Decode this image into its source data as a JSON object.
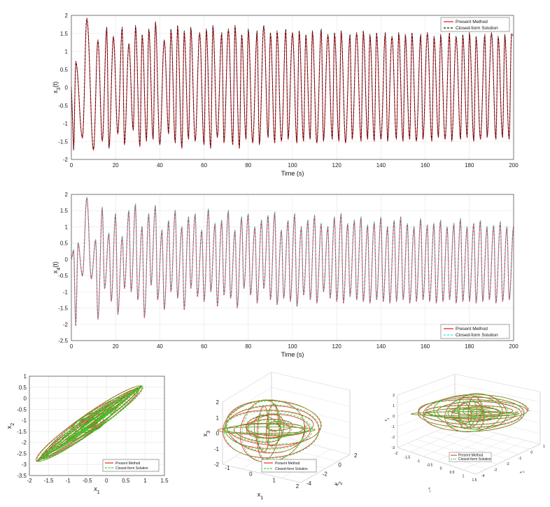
{
  "chart_data": [
    {
      "type": "line",
      "ylabel": "x",
      "ylabel_sub": "3",
      "ylabel_tail": "(t)",
      "xlabel": "Time (s)",
      "xlim": [
        0,
        200
      ],
      "ylim": [
        -2,
        2
      ],
      "xticks": [
        0,
        20,
        40,
        60,
        80,
        100,
        120,
        140,
        160,
        180,
        200
      ],
      "yticks": [
        -2,
        -1.5,
        -1,
        -0.5,
        0,
        0.5,
        1,
        1.5,
        2
      ],
      "grid": true,
      "legend_position": "top-right",
      "series": [
        {
          "name": "Present Method",
          "color": "#e8262e",
          "style": "solid"
        },
        {
          "name": "Closed-form Solution",
          "color": "#111111",
          "style": "dashed"
        }
      ],
      "peaks": {
        "x": [
          2,
          7,
          12,
          16,
          19,
          23,
          26,
          29,
          32,
          35,
          38,
          42,
          45,
          48,
          51,
          54,
          58,
          61,
          64,
          68,
          71,
          74,
          77,
          80,
          84,
          87,
          90,
          93,
          97,
          100,
          103,
          106,
          109,
          113,
          116,
          119,
          122,
          126,
          129,
          132,
          135,
          138,
          142,
          145,
          148,
          151,
          154,
          158,
          161,
          164,
          167,
          171,
          174,
          177,
          180,
          183,
          187,
          190,
          193,
          196,
          199
        ],
        "y": [
          0.7,
          1.9,
          1.3,
          1.65,
          1.4,
          1.65,
          1.2,
          1.7,
          1.45,
          1.6,
          1.8,
          1.3,
          1.6,
          1.7,
          1.55,
          1.65,
          1.5,
          1.6,
          1.7,
          1.5,
          1.6,
          1.7,
          1.45,
          1.6,
          1.55,
          1.7,
          1.5,
          1.55,
          1.6,
          1.5,
          1.55,
          1.45,
          1.55,
          1.6,
          1.45,
          1.5,
          1.55,
          1.45,
          1.5,
          1.55,
          1.45,
          1.5,
          1.5,
          1.4,
          1.5,
          1.45,
          1.5,
          1.45,
          1.5,
          1.4,
          1.45,
          1.5,
          1.4,
          1.45,
          1.5,
          1.4,
          1.45,
          1.5,
          1.4,
          1.45,
          1.45
        ]
      },
      "troughs": {
        "x": [
          1,
          5,
          10,
          14,
          17,
          21,
          24,
          28,
          31,
          34,
          37,
          40,
          44,
          47,
          50,
          53,
          56,
          60,
          63,
          66,
          69,
          73,
          76,
          79,
          82,
          85,
          89,
          92,
          95,
          98,
          102,
          105,
          108,
          111,
          114,
          118,
          121,
          124,
          127,
          131,
          134,
          137,
          140,
          143,
          147,
          150,
          153,
          156,
          159,
          163,
          166,
          169,
          172,
          176,
          179,
          182,
          185,
          188,
          192,
          195,
          198
        ],
        "y": [
          -1.75,
          -1.4,
          -1.75,
          -1.5,
          -1.7,
          -1.3,
          -1.6,
          -1.2,
          -1.65,
          -1.5,
          -1.45,
          -1.6,
          -1.3,
          -1.55,
          -1.7,
          -1.45,
          -1.5,
          -1.6,
          -1.7,
          -1.4,
          -1.55,
          -1.6,
          -1.7,
          -1.45,
          -1.55,
          -1.6,
          -1.4,
          -1.55,
          -1.5,
          -1.45,
          -1.55,
          -1.5,
          -1.45,
          -1.55,
          -1.5,
          -1.45,
          -1.5,
          -1.55,
          -1.45,
          -1.5,
          -1.45,
          -1.5,
          -1.45,
          -1.5,
          -1.45,
          -1.5,
          -1.45,
          -1.5,
          -1.45,
          -1.5,
          -1.4,
          -1.45,
          -1.5,
          -1.45,
          -1.4,
          -1.5,
          -1.45,
          -1.4,
          -1.45,
          -1.4,
          -1.45
        ]
      }
    },
    {
      "type": "line",
      "ylabel": "x",
      "ylabel_sub": "4",
      "ylabel_tail": "(t)",
      "xlabel": "Time (s)",
      "xlim": [
        0,
        200
      ],
      "ylim": [
        -2.5,
        2
      ],
      "xticks": [
        0,
        20,
        40,
        60,
        80,
        100,
        120,
        140,
        160,
        180,
        200
      ],
      "yticks": [
        -2.5,
        -2,
        -1.5,
        -1,
        -0.5,
        0,
        0.5,
        1,
        1.5,
        2
      ],
      "grid": true,
      "legend_position": "bottom-right",
      "series": [
        {
          "name": "Present Method",
          "color": "#e8262e",
          "style": "solid"
        },
        {
          "name": "Closed-form Solution",
          "color": "#39d3ea",
          "style": "dashed"
        }
      ],
      "peaks": {
        "x": [
          1,
          3,
          7,
          11,
          14,
          17,
          20,
          23,
          26,
          29,
          32,
          35,
          38,
          41,
          44,
          47,
          50,
          53,
          56,
          59,
          62,
          65,
          68,
          71,
          74,
          77,
          80,
          83,
          86,
          89,
          92,
          95,
          98,
          101,
          104,
          107,
          110,
          113,
          116,
          119,
          122,
          125,
          128,
          131,
          134,
          137,
          140,
          143,
          146,
          149,
          152,
          155,
          158,
          161,
          164,
          167,
          170,
          173,
          176,
          179,
          182,
          185,
          188,
          191,
          194,
          197,
          200
        ],
        "y": [
          0.3,
          0.5,
          1.9,
          0.6,
          1.6,
          0.8,
          1.4,
          0.7,
          1.5,
          1.7,
          1.0,
          1.4,
          1.65,
          0.9,
          1.2,
          1.5,
          1.0,
          1.3,
          1.4,
          0.9,
          1.55,
          1.1,
          1.2,
          1.5,
          0.9,
          1.3,
          1.4,
          1.0,
          1.2,
          1.35,
          1.45,
          0.9,
          1.2,
          1.4,
          1.0,
          1.2,
          1.35,
          1.1,
          1.0,
          1.3,
          1.4,
          1.1,
          1.2,
          1.3,
          1.05,
          1.15,
          1.3,
          1.0,
          1.2,
          1.3,
          1.1,
          1.0,
          1.25,
          1.05,
          1.1,
          1.2,
          1.0,
          1.1,
          1.25,
          1.0,
          1.1,
          1.2,
          1.0,
          1.05,
          1.15,
          1.0,
          1.0
        ]
      },
      "troughs": {
        "x": [
          2,
          5,
          9,
          12,
          15,
          18,
          21,
          24,
          27,
          30,
          33,
          36,
          39,
          42,
          45,
          48,
          51,
          54,
          57,
          60,
          63,
          66,
          69,
          72,
          75,
          78,
          81,
          84,
          87,
          90,
          93,
          96,
          99,
          102,
          105,
          108,
          111,
          114,
          117,
          120,
          123,
          126,
          129,
          132,
          135,
          138,
          141,
          144,
          147,
          150,
          153,
          156,
          159,
          162,
          165,
          168,
          171,
          174,
          177,
          180,
          183,
          186,
          189,
          192,
          195,
          198
        ],
        "y": [
          -2.05,
          -0.5,
          -0.6,
          -1.85,
          -0.9,
          -1.3,
          -1.7,
          -0.9,
          -1.0,
          -1.25,
          -1.8,
          -0.8,
          -1.25,
          -1.55,
          -1.0,
          -1.2,
          -1.55,
          -0.9,
          -1.15,
          -1.3,
          -1.0,
          -1.45,
          -1.1,
          -1.2,
          -1.5,
          -0.9,
          -1.1,
          -1.35,
          -0.9,
          -1.25,
          -1.4,
          -1.2,
          -1.3,
          -1.45,
          -1.1,
          -1.25,
          -1.35,
          -1.0,
          -1.2,
          -1.3,
          -1.35,
          -1.15,
          -1.25,
          -1.3,
          -1.35,
          -1.25,
          -1.3,
          -1.35,
          -1.3,
          -1.25,
          -1.35,
          -1.3,
          -1.25,
          -1.3,
          -1.35,
          -1.3,
          -1.25,
          -1.35,
          -1.3,
          -1.3,
          -1.35,
          -1.3,
          -1.25,
          -1.35,
          -1.3,
          -1.25
        ]
      }
    },
    {
      "type": "line",
      "subtype": "phase-portrait",
      "xlabel": "x",
      "xlabel_sub": "1",
      "ylabel": "x",
      "ylabel_sub": "2",
      "xlim": [
        -2,
        1.5
      ],
      "ylim": [
        -3.5,
        1
      ],
      "xticks": [
        -2,
        -1.5,
        -1,
        -0.5,
        0,
        0.5,
        1,
        1.5
      ],
      "yticks": [
        -3.5,
        -3,
        -2.5,
        -2,
        -1.5,
        -1,
        -0.5,
        0,
        0.5,
        1
      ],
      "grid": true,
      "legend_position": "bottom-right",
      "series": [
        {
          "name": "Present Method",
          "color": "#e8262e",
          "style": "solid"
        },
        {
          "name": "Closed-form Solution",
          "color": "#22dd22",
          "style": "dashed"
        }
      ],
      "orbit": {
        "center": [
          -0.45,
          -1.15
        ],
        "axis_dir": [
          0.62,
          0.78
        ],
        "semi_major": 2.2,
        "semi_minor": 0.3,
        "loops": 18
      }
    },
    {
      "type": "line",
      "subtype": "3d-phase-portrait",
      "xlabel": "x",
      "xlabel_sub": "1",
      "ylabel": "x",
      "ylabel_sub": "2",
      "zlabel": "x",
      "zlabel_sub": "3",
      "xticks": [
        -1,
        0,
        1,
        2
      ],
      "yticks": [
        -4,
        -2,
        0,
        2
      ],
      "zticks": [
        -2,
        -1,
        0,
        1,
        2
      ],
      "zlim": [
        -2,
        2
      ],
      "legend_position": "bottom-right",
      "series": [
        {
          "name": "Present Method",
          "color": "#e8262e",
          "style": "solid"
        },
        {
          "name": "Closed-form Solution",
          "color": "#22dd22",
          "style": "dashed"
        }
      ]
    },
    {
      "type": "line",
      "subtype": "3d-phase-portrait",
      "xlabel": "x",
      "xlabel_sub": "1",
      "ylabel": "x",
      "ylabel_sub": "2",
      "zlabel": "x",
      "zlabel_sub": "4",
      "xticks": [
        -2,
        -1.5,
        -1,
        -0.5,
        0,
        0.5,
        1,
        1.5
      ],
      "yticks": [
        -4,
        -3,
        -2,
        -1,
        0,
        1
      ],
      "zticks": [
        -3,
        -2,
        -1,
        0,
        1,
        2
      ],
      "zlim": [
        -3,
        2
      ],
      "legend_position": "bottom-center",
      "series": [
        {
          "name": "Present Method",
          "color": "#e8262e",
          "style": "solid"
        },
        {
          "name": "Closed-form Solution",
          "color": "#22dd22",
          "style": "dashed"
        }
      ]
    }
  ]
}
